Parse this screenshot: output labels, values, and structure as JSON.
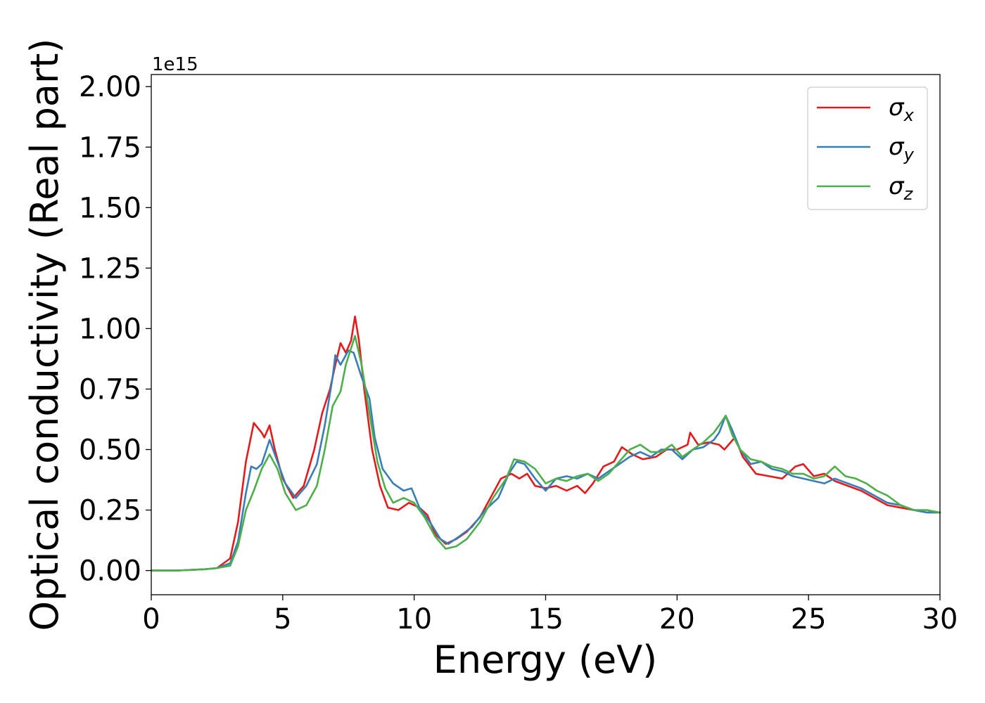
{
  "chart_data": {
    "type": "line",
    "title": "",
    "xlabel": "Energy (eV)",
    "ylabel": "Optical conductivity (Real part)",
    "y_offset_text": "1e15",
    "xlim": [
      0,
      30
    ],
    "ylim": [
      -0.1,
      2.05
    ],
    "x_ticks": [
      0,
      5,
      10,
      15,
      20,
      25,
      30
    ],
    "x_tick_labels": [
      "0",
      "5",
      "10",
      "15",
      "20",
      "25",
      "30"
    ],
    "y_ticks": [
      0,
      0.25,
      0.5,
      0.75,
      1.0,
      1.25,
      1.5,
      1.75,
      2.0
    ],
    "y_tick_labels": [
      "0.00",
      "0.25",
      "0.50",
      "0.75",
      "1.00",
      "1.25",
      "1.50",
      "1.75",
      "2.00"
    ],
    "grid": false,
    "legend_position": "top-right",
    "series": [
      {
        "name": "σx",
        "name_base": "σ",
        "name_sub": "x",
        "color": "#e41a1c",
        "points": [
          [
            0,
            0.0
          ],
          [
            1,
            0.0
          ],
          [
            2,
            0.005
          ],
          [
            2.5,
            0.01
          ],
          [
            3,
            0.05
          ],
          [
            3.3,
            0.2
          ],
          [
            3.6,
            0.45
          ],
          [
            3.9,
            0.61
          ],
          [
            4.2,
            0.57
          ],
          [
            4.3,
            0.55
          ],
          [
            4.5,
            0.6
          ],
          [
            4.7,
            0.5
          ],
          [
            5,
            0.38
          ],
          [
            5.4,
            0.3
          ],
          [
            5.8,
            0.35
          ],
          [
            6.2,
            0.5
          ],
          [
            6.5,
            0.65
          ],
          [
            6.8,
            0.75
          ],
          [
            7.0,
            0.85
          ],
          [
            7.2,
            0.94
          ],
          [
            7.4,
            0.9
          ],
          [
            7.6,
            0.95
          ],
          [
            7.75,
            1.05
          ],
          [
            7.9,
            0.95
          ],
          [
            8.1,
            0.75
          ],
          [
            8.4,
            0.5
          ],
          [
            8.7,
            0.35
          ],
          [
            9.0,
            0.26
          ],
          [
            9.4,
            0.25
          ],
          [
            9.8,
            0.28
          ],
          [
            10.2,
            0.26
          ],
          [
            10.5,
            0.23
          ],
          [
            10.8,
            0.15
          ],
          [
            11.2,
            0.11
          ],
          [
            11.6,
            0.13
          ],
          [
            12.0,
            0.16
          ],
          [
            12.5,
            0.22
          ],
          [
            13.0,
            0.32
          ],
          [
            13.3,
            0.38
          ],
          [
            13.7,
            0.4
          ],
          [
            14.0,
            0.38
          ],
          [
            14.3,
            0.4
          ],
          [
            14.6,
            0.35
          ],
          [
            15.0,
            0.34
          ],
          [
            15.4,
            0.35
          ],
          [
            15.8,
            0.33
          ],
          [
            16.2,
            0.35
          ],
          [
            16.5,
            0.32
          ],
          [
            16.8,
            0.36
          ],
          [
            17.2,
            0.43
          ],
          [
            17.6,
            0.45
          ],
          [
            17.9,
            0.51
          ],
          [
            18.3,
            0.48
          ],
          [
            18.7,
            0.46
          ],
          [
            19.2,
            0.47
          ],
          [
            19.6,
            0.5
          ],
          [
            20.0,
            0.5
          ],
          [
            20.4,
            0.52
          ],
          [
            20.5,
            0.57
          ],
          [
            20.8,
            0.52
          ],
          [
            21.2,
            0.53
          ],
          [
            21.6,
            0.52
          ],
          [
            21.8,
            0.5
          ],
          [
            22.2,
            0.55
          ],
          [
            22.5,
            0.47
          ],
          [
            23.0,
            0.4
          ],
          [
            23.5,
            0.39
          ],
          [
            24.0,
            0.38
          ],
          [
            24.5,
            0.43
          ],
          [
            24.8,
            0.44
          ],
          [
            25.2,
            0.39
          ],
          [
            25.6,
            0.4
          ],
          [
            26.0,
            0.37
          ],
          [
            26.5,
            0.35
          ],
          [
            27.0,
            0.33
          ],
          [
            27.5,
            0.3
          ],
          [
            28.0,
            0.27
          ],
          [
            28.5,
            0.26
          ],
          [
            29.0,
            0.25
          ],
          [
            29.5,
            0.24
          ],
          [
            30,
            0.24
          ]
        ]
      },
      {
        "name": "σy",
        "name_base": "σ",
        "name_sub": "y",
        "color": "#377eb8",
        "points": [
          [
            0,
            0.0
          ],
          [
            1,
            0.0
          ],
          [
            2,
            0.005
          ],
          [
            2.5,
            0.01
          ],
          [
            3,
            0.03
          ],
          [
            3.3,
            0.12
          ],
          [
            3.6,
            0.32
          ],
          [
            3.8,
            0.43
          ],
          [
            4.0,
            0.42
          ],
          [
            4.2,
            0.44
          ],
          [
            4.5,
            0.54
          ],
          [
            4.8,
            0.45
          ],
          [
            5.1,
            0.36
          ],
          [
            5.5,
            0.3
          ],
          [
            5.9,
            0.35
          ],
          [
            6.3,
            0.44
          ],
          [
            6.6,
            0.6
          ],
          [
            6.9,
            0.8
          ],
          [
            7.0,
            0.89
          ],
          [
            7.2,
            0.85
          ],
          [
            7.5,
            0.91
          ],
          [
            7.7,
            0.9
          ],
          [
            8.0,
            0.8
          ],
          [
            8.3,
            0.71
          ],
          [
            8.5,
            0.55
          ],
          [
            8.8,
            0.42
          ],
          [
            9.2,
            0.36
          ],
          [
            9.6,
            0.33
          ],
          [
            9.9,
            0.34
          ],
          [
            10.2,
            0.26
          ],
          [
            10.6,
            0.2
          ],
          [
            11.0,
            0.13
          ],
          [
            11.3,
            0.11
          ],
          [
            11.7,
            0.14
          ],
          [
            12.2,
            0.18
          ],
          [
            12.7,
            0.25
          ],
          [
            13.2,
            0.3
          ],
          [
            13.6,
            0.4
          ],
          [
            13.9,
            0.45
          ],
          [
            14.2,
            0.44
          ],
          [
            14.6,
            0.38
          ],
          [
            15.0,
            0.33
          ],
          [
            15.4,
            0.38
          ],
          [
            15.8,
            0.39
          ],
          [
            16.2,
            0.38
          ],
          [
            16.6,
            0.4
          ],
          [
            17.0,
            0.38
          ],
          [
            17.4,
            0.41
          ],
          [
            17.8,
            0.44
          ],
          [
            18.2,
            0.47
          ],
          [
            18.6,
            0.49
          ],
          [
            19.0,
            0.47
          ],
          [
            19.4,
            0.5
          ],
          [
            19.8,
            0.5
          ],
          [
            20.2,
            0.46
          ],
          [
            20.6,
            0.5
          ],
          [
            21.0,
            0.51
          ],
          [
            21.4,
            0.54
          ],
          [
            21.6,
            0.57
          ],
          [
            21.85,
            0.64
          ],
          [
            22.1,
            0.58
          ],
          [
            22.4,
            0.5
          ],
          [
            22.8,
            0.44
          ],
          [
            23.2,
            0.45
          ],
          [
            23.6,
            0.42
          ],
          [
            24.0,
            0.41
          ],
          [
            24.4,
            0.39
          ],
          [
            24.8,
            0.38
          ],
          [
            25.2,
            0.37
          ],
          [
            25.6,
            0.36
          ],
          [
            26.0,
            0.38
          ],
          [
            26.5,
            0.36
          ],
          [
            27.0,
            0.34
          ],
          [
            27.5,
            0.31
          ],
          [
            28.0,
            0.28
          ],
          [
            28.5,
            0.27
          ],
          [
            29.0,
            0.25
          ],
          [
            29.5,
            0.24
          ],
          [
            30,
            0.24
          ]
        ]
      },
      {
        "name": "σz",
        "name_base": "σ",
        "name_sub": "z",
        "color": "#4daf4a",
        "points": [
          [
            0,
            0.0
          ],
          [
            1,
            0.0
          ],
          [
            2,
            0.005
          ],
          [
            2.5,
            0.01
          ],
          [
            3,
            0.02
          ],
          [
            3.3,
            0.1
          ],
          [
            3.6,
            0.25
          ],
          [
            3.9,
            0.33
          ],
          [
            4.2,
            0.42
          ],
          [
            4.5,
            0.48
          ],
          [
            4.8,
            0.42
          ],
          [
            5.1,
            0.32
          ],
          [
            5.5,
            0.25
          ],
          [
            5.9,
            0.27
          ],
          [
            6.3,
            0.35
          ],
          [
            6.6,
            0.5
          ],
          [
            6.9,
            0.68
          ],
          [
            7.2,
            0.74
          ],
          [
            7.4,
            0.85
          ],
          [
            7.75,
            0.97
          ],
          [
            8.0,
            0.85
          ],
          [
            8.3,
            0.65
          ],
          [
            8.6,
            0.45
          ],
          [
            8.9,
            0.34
          ],
          [
            9.2,
            0.28
          ],
          [
            9.6,
            0.3
          ],
          [
            10.0,
            0.28
          ],
          [
            10.4,
            0.22
          ],
          [
            10.8,
            0.14
          ],
          [
            11.2,
            0.09
          ],
          [
            11.6,
            0.1
          ],
          [
            12.0,
            0.13
          ],
          [
            12.5,
            0.2
          ],
          [
            13.0,
            0.3
          ],
          [
            13.5,
            0.38
          ],
          [
            13.8,
            0.46
          ],
          [
            14.2,
            0.45
          ],
          [
            14.6,
            0.42
          ],
          [
            15.0,
            0.36
          ],
          [
            15.4,
            0.38
          ],
          [
            15.8,
            0.37
          ],
          [
            16.2,
            0.39
          ],
          [
            16.6,
            0.4
          ],
          [
            17.0,
            0.37
          ],
          [
            17.4,
            0.4
          ],
          [
            17.8,
            0.45
          ],
          [
            18.2,
            0.5
          ],
          [
            18.6,
            0.52
          ],
          [
            19.0,
            0.49
          ],
          [
            19.4,
            0.49
          ],
          [
            19.8,
            0.52
          ],
          [
            20.2,
            0.47
          ],
          [
            20.6,
            0.5
          ],
          [
            21.0,
            0.53
          ],
          [
            21.4,
            0.57
          ],
          [
            21.6,
            0.6
          ],
          [
            21.85,
            0.64
          ],
          [
            22.1,
            0.56
          ],
          [
            22.4,
            0.5
          ],
          [
            22.8,
            0.46
          ],
          [
            23.2,
            0.45
          ],
          [
            23.6,
            0.43
          ],
          [
            24.0,
            0.42
          ],
          [
            24.4,
            0.4
          ],
          [
            24.8,
            0.4
          ],
          [
            25.2,
            0.38
          ],
          [
            25.6,
            0.39
          ],
          [
            26.0,
            0.43
          ],
          [
            26.4,
            0.39
          ],
          [
            26.8,
            0.38
          ],
          [
            27.2,
            0.36
          ],
          [
            27.6,
            0.33
          ],
          [
            28.0,
            0.31
          ],
          [
            28.5,
            0.27
          ],
          [
            29.0,
            0.25
          ],
          [
            29.5,
            0.25
          ],
          [
            30,
            0.24
          ]
        ]
      }
    ]
  }
}
